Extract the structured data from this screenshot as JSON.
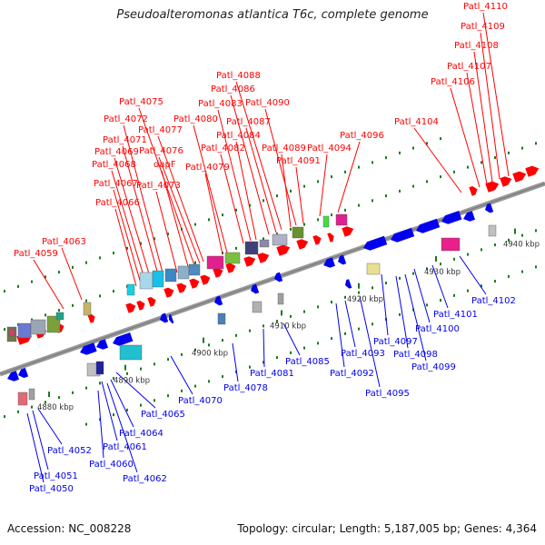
{
  "title": "Pseudoalteromonas atlantica T6c, complete genome",
  "footer": {
    "accession": "Accession: NC_008228",
    "topology": "Topology: circular; Length: 5,187,005 bp; Genes: 4,364"
  },
  "colors": {
    "forward": "#ff0000",
    "reverse": "#0000ee",
    "axis": "#888888",
    "dots": "#1a7a1a"
  },
  "axis_ticks": [
    "4880 kbp",
    "4890 kbp",
    "4900 kbp",
    "4910 kbp",
    "4920 kbp",
    "4930 kbp",
    "4940 kbp"
  ],
  "upper_labels": [
    "Patl_4059",
    "Patl_4063",
    "Patl_4066",
    "Patl_4067",
    "Patl_4068",
    "Patl_4069",
    "Patl_4071",
    "Patl_4072",
    "Patl_4073",
    "dapF",
    "Patl_4075",
    "Patl_4076",
    "Patl_4077",
    "Patl_4079",
    "Patl_4080",
    "Patl_4082",
    "Patl_4083",
    "Patl_4084",
    "Patl_4086",
    "Patl_4087",
    "Patl_4088",
    "Patl_4089",
    "Patl_4090",
    "Patl_4091",
    "Patl_4094",
    "Patl_4096",
    "Patl_4104",
    "Patl_4106",
    "Patl_4107",
    "Patl_4108",
    "Patl_4109",
    "Patl_4110"
  ],
  "lower_labels": [
    "Patl_4050",
    "Patl_4051",
    "Patl_4052",
    "Patl_4060",
    "Patl_4061",
    "Patl_4062",
    "Patl_4064",
    "Patl_4065",
    "Patl_4070",
    "Patl_4078",
    "Patl_4081",
    "Patl_4085",
    "Patl_4092",
    "Patl_4093",
    "Patl_4095",
    "Patl_4097",
    "Patl_4098",
    "Patl_4099",
    "Patl_4100",
    "Patl_4101",
    "Patl_4102"
  ]
}
